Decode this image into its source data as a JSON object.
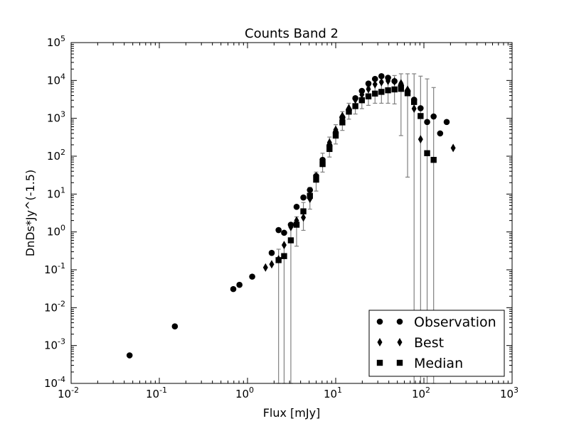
{
  "chart_data": {
    "type": "scatter",
    "title": "Counts Band 2",
    "xlabel": "Flux [mJy]",
    "ylabel": "DnDs*Jy^(-1.5)",
    "xscale": "log",
    "yscale": "log",
    "xlim": [
      0.01,
      1000
    ],
    "ylim": [
      0.0001,
      100000
    ],
    "grid": false,
    "legend_position": "lower-right",
    "x_ticks": [
      {
        "value": 0.01,
        "base": "10",
        "exp": "-2"
      },
      {
        "value": 0.1,
        "base": "10",
        "exp": "-1"
      },
      {
        "value": 1,
        "base": "10",
        "exp": "0"
      },
      {
        "value": 10,
        "base": "10",
        "exp": "1"
      },
      {
        "value": 100,
        "base": "10",
        "exp": "2"
      },
      {
        "value": 1000,
        "base": "10",
        "exp": "3"
      }
    ],
    "y_ticks": [
      {
        "value": 0.0001,
        "base": "10",
        "exp": "-4"
      },
      {
        "value": 0.001,
        "base": "10",
        "exp": "-3"
      },
      {
        "value": 0.01,
        "base": "10",
        "exp": "-2"
      },
      {
        "value": 0.1,
        "base": "10",
        "exp": "-1"
      },
      {
        "value": 1,
        "base": "10",
        "exp": "0"
      },
      {
        "value": 10,
        "base": "10",
        "exp": "1"
      },
      {
        "value": 100,
        "base": "10",
        "exp": "2"
      },
      {
        "value": 1000,
        "base": "10",
        "exp": "3"
      },
      {
        "value": 10000,
        "base": "10",
        "exp": "4"
      },
      {
        "value": 100000,
        "base": "10",
        "exp": "5"
      }
    ],
    "series": [
      {
        "name": "Observation",
        "marker": "circle",
        "color": "#000000",
        "points": [
          {
            "x": 0.046,
            "y": 0.00055
          },
          {
            "x": 0.15,
            "y": 0.0032
          },
          {
            "x": 0.69,
            "y": 0.031
          },
          {
            "x": 0.81,
            "y": 0.04
          },
          {
            "x": 1.13,
            "y": 0.066
          },
          {
            "x": 1.88,
            "y": 0.28
          },
          {
            "x": 2.25,
            "y": 1.12
          },
          {
            "x": 2.6,
            "y": 0.95
          },
          {
            "x": 3.1,
            "y": 1.55
          },
          {
            "x": 3.6,
            "y": 4.6
          },
          {
            "x": 4.3,
            "y": 8.1
          },
          {
            "x": 5.1,
            "y": 12.8
          },
          {
            "x": 6.0,
            "y": 30
          },
          {
            "x": 7.1,
            "y": 80
          },
          {
            "x": 8.5,
            "y": 190
          },
          {
            "x": 10.0,
            "y": 420
          },
          {
            "x": 11.9,
            "y": 1050
          },
          {
            "x": 14.1,
            "y": 1650
          },
          {
            "x": 16.7,
            "y": 3400
          },
          {
            "x": 19.8,
            "y": 5300
          },
          {
            "x": 23.5,
            "y": 8300
          },
          {
            "x": 27.9,
            "y": 11000
          },
          {
            "x": 33.0,
            "y": 13000
          },
          {
            "x": 39.2,
            "y": 11800
          },
          {
            "x": 46.4,
            "y": 9600
          },
          {
            "x": 55.0,
            "y": 7300
          },
          {
            "x": 65.3,
            "y": 5200
          },
          {
            "x": 77.4,
            "y": 3100
          },
          {
            "x": 91.7,
            "y": 1850
          },
          {
            "x": 108.8,
            "y": 800
          },
          {
            "x": 128.9,
            "y": 1120
          },
          {
            "x": 152.8,
            "y": 400
          },
          {
            "x": 181.2,
            "y": 800
          }
        ]
      },
      {
        "name": "Best",
        "marker": "thin_diamond",
        "color": "#000000",
        "points": [
          {
            "x": 1.6,
            "y": 0.115
          },
          {
            "x": 1.88,
            "y": 0.14
          },
          {
            "x": 2.25,
            "y": 0.19
          },
          {
            "x": 2.6,
            "y": 0.45
          },
          {
            "x": 3.1,
            "y": 1.35
          },
          {
            "x": 3.6,
            "y": 2.0
          },
          {
            "x": 4.3,
            "y": 2.4
          },
          {
            "x": 5.1,
            "y": 7.5
          },
          {
            "x": 6.0,
            "y": 30
          },
          {
            "x": 7.1,
            "y": 65
          },
          {
            "x": 8.5,
            "y": 230
          },
          {
            "x": 10.0,
            "y": 500
          },
          {
            "x": 11.9,
            "y": 1150
          },
          {
            "x": 14.1,
            "y": 1850
          },
          {
            "x": 16.7,
            "y": 3100
          },
          {
            "x": 19.8,
            "y": 4200
          },
          {
            "x": 23.5,
            "y": 5900
          },
          {
            "x": 27.9,
            "y": 7900
          },
          {
            "x": 33.0,
            "y": 9000
          },
          {
            "x": 39.2,
            "y": 9700
          },
          {
            "x": 46.4,
            "y": 9400
          },
          {
            "x": 55.0,
            "y": 8400
          },
          {
            "x": 65.3,
            "y": 5700
          },
          {
            "x": 77.4,
            "y": 1800
          },
          {
            "x": 91.7,
            "y": 280
          },
          {
            "x": 214.7,
            "y": 165
          }
        ]
      },
      {
        "name": "Median",
        "marker": "square",
        "color": "#000000",
        "points": [
          {
            "x": 2.25,
            "y": 0.18,
            "yerr_low": 0.0001,
            "yerr_high": 0.35
          },
          {
            "x": 2.6,
            "y": 0.23,
            "yerr_low": 0.0001,
            "yerr_high": 0.45
          },
          {
            "x": 3.1,
            "y": 0.6,
            "yerr_low": 0.0001,
            "yerr_high": 1.45
          },
          {
            "x": 3.6,
            "y": 1.55,
            "yerr_low": 0.42,
            "yerr_high": 2.5
          },
          {
            "x": 4.3,
            "y": 3.5,
            "yerr_low": 1.1,
            "yerr_high": 6.0
          },
          {
            "x": 5.1,
            "y": 9.0,
            "yerr_low": 4.0,
            "yerr_high": 15
          },
          {
            "x": 6.0,
            "y": 24,
            "yerr_low": 12,
            "yerr_high": 38
          },
          {
            "x": 7.1,
            "y": 62,
            "yerr_low": 38,
            "yerr_high": 120
          },
          {
            "x": 8.5,
            "y": 155,
            "yerr_low": 95,
            "yerr_high": 320
          },
          {
            "x": 10.0,
            "y": 350,
            "yerr_low": 210,
            "yerr_high": 680
          },
          {
            "x": 11.9,
            "y": 780,
            "yerr_low": 480,
            "yerr_high": 1500
          },
          {
            "x": 14.1,
            "y": 1500,
            "yerr_low": 950,
            "yerr_high": 2500
          },
          {
            "x": 16.7,
            "y": 2100,
            "yerr_low": 1300,
            "yerr_high": 3600
          },
          {
            "x": 19.8,
            "y": 3000,
            "yerr_low": 1800,
            "yerr_high": 5100
          },
          {
            "x": 23.5,
            "y": 3800,
            "yerr_low": 2200,
            "yerr_high": 6800
          },
          {
            "x": 27.9,
            "y": 4500,
            "yerr_low": 2500,
            "yerr_high": 8300
          },
          {
            "x": 33.0,
            "y": 5000,
            "yerr_low": 2500,
            "yerr_high": 9800
          },
          {
            "x": 39.2,
            "y": 5500,
            "yerr_low": 2500,
            "yerr_high": 11800
          },
          {
            "x": 46.4,
            "y": 5800,
            "yerr_low": 2400,
            "yerr_high": 13500
          },
          {
            "x": 55.0,
            "y": 6000,
            "yerr_low": 350,
            "yerr_high": 15000
          },
          {
            "x": 65.3,
            "y": 4600,
            "yerr_low": 28,
            "yerr_high": 15000
          },
          {
            "x": 77.4,
            "y": 2700,
            "yerr_low": 0.0001,
            "yerr_high": 15000
          },
          {
            "x": 91.7,
            "y": 1150,
            "yerr_low": 0.0001,
            "yerr_high": 13000
          },
          {
            "x": 108.8,
            "y": 120,
            "yerr_low": 0.0001,
            "yerr_high": 11000
          },
          {
            "x": 128.9,
            "y": 80,
            "yerr_low": 0.0001,
            "yerr_high": 6500
          }
        ]
      }
    ],
    "errorbar_color": "#808080"
  }
}
